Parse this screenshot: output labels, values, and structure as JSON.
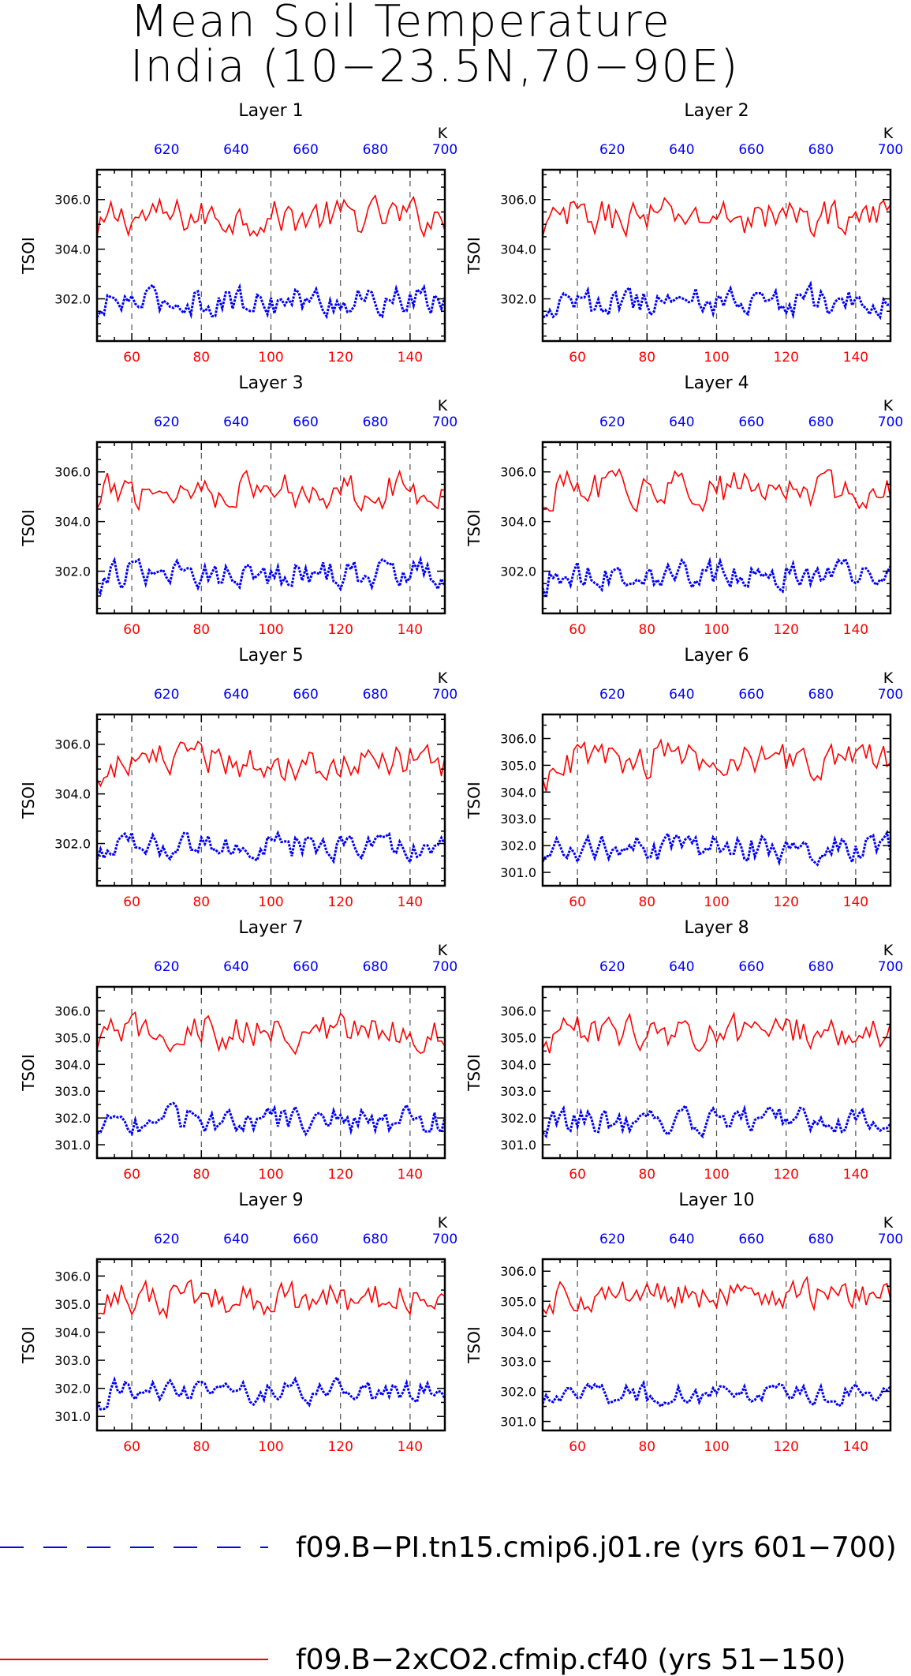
{
  "figure": {
    "title_line1": "Mean Soil Temperature",
    "title_line2": "India (10−23.5N,70−90E)"
  },
  "legend": [
    {
      "label": "f09.B−PI.tn15.cmip6.j01.re (yrs 601−700)",
      "color": "#0000ff",
      "style": "dashed"
    },
    {
      "label": "f09.B−2xCO2.cfmip.cf40 (yrs 51−150)",
      "color": "#ff0000",
      "style": "solid"
    }
  ],
  "colors": {
    "red_series": "#ff0000",
    "blue_series": "#0000ff",
    "axis": "#000000"
  },
  "chart_data": [
    {
      "type": "line",
      "title": "Layer 1",
      "ylabel": "TSOI",
      "ylim": [
        300.3,
        307.2
      ],
      "yticks": [
        302,
        304,
        306
      ],
      "yticklabels": [
        "302.0",
        "304.0",
        "306.0"
      ],
      "x_bottom": {
        "range": [
          50,
          150
        ],
        "ticks": [
          60,
          80,
          100,
          120,
          140
        ],
        "color": "#ff0000"
      },
      "x_top": {
        "range": [
          600,
          700
        ],
        "ticks": [
          620,
          640,
          660,
          680,
          700
        ],
        "unit": "K",
        "color": "#0000ff"
      },
      "vlines": [
        60,
        80,
        100,
        120,
        140
      ],
      "series": [
        {
          "color": "#ff0000",
          "style": "solid",
          "mean": 305.3,
          "amplitude": 0.75
        },
        {
          "color": "#0000ff",
          "style": "dashed",
          "mean": 301.9,
          "amplitude": 0.6
        }
      ]
    },
    {
      "type": "line",
      "title": "Layer 2",
      "ylabel": "TSOI",
      "ylim": [
        300.3,
        307.2
      ],
      "yticks": [
        302,
        304,
        306
      ],
      "yticklabels": [
        "302.0",
        "304.0",
        "306.0"
      ],
      "x_bottom": {
        "range": [
          50,
          150
        ],
        "ticks": [
          60,
          80,
          100,
          120,
          140
        ],
        "color": "#ff0000"
      },
      "x_top": {
        "range": [
          600,
          700
        ],
        "ticks": [
          620,
          640,
          660,
          680,
          700
        ],
        "unit": "K",
        "color": "#0000ff"
      },
      "vlines": [
        60,
        80,
        100,
        120,
        140
      ],
      "series": [
        {
          "color": "#ff0000",
          "style": "solid",
          "mean": 305.3,
          "amplitude": 0.75
        },
        {
          "color": "#0000ff",
          "style": "dashed",
          "mean": 301.9,
          "amplitude": 0.6
        }
      ]
    },
    {
      "type": "line",
      "title": "Layer 3",
      "ylabel": "TSOI",
      "ylim": [
        300.3,
        307.2
      ],
      "yticks": [
        302,
        304,
        306
      ],
      "yticklabels": [
        "302.0",
        "304.0",
        "306.0"
      ],
      "x_bottom": {
        "range": [
          50,
          150
        ],
        "ticks": [
          60,
          80,
          100,
          120,
          140
        ],
        "color": "#ff0000"
      },
      "x_top": {
        "range": [
          600,
          700
        ],
        "ticks": [
          620,
          640,
          660,
          680,
          700
        ],
        "unit": "K",
        "color": "#0000ff"
      },
      "vlines": [
        60,
        80,
        100,
        120,
        140
      ],
      "series": [
        {
          "color": "#ff0000",
          "style": "solid",
          "mean": 305.3,
          "amplitude": 0.75
        },
        {
          "color": "#0000ff",
          "style": "dashed",
          "mean": 301.9,
          "amplitude": 0.58
        }
      ]
    },
    {
      "type": "line",
      "title": "Layer 4",
      "ylabel": "TSOI",
      "ylim": [
        300.3,
        307.2
      ],
      "yticks": [
        302,
        304,
        306
      ],
      "yticklabels": [
        "302.0",
        "304.0",
        "306.0"
      ],
      "x_bottom": {
        "range": [
          50,
          150
        ],
        "ticks": [
          60,
          80,
          100,
          120,
          140
        ],
        "color": "#ff0000"
      },
      "x_top": {
        "range": [
          600,
          700
        ],
        "ticks": [
          620,
          640,
          660,
          680,
          700
        ],
        "unit": "K",
        "color": "#0000ff"
      },
      "vlines": [
        60,
        80,
        100,
        120,
        140
      ],
      "series": [
        {
          "color": "#ff0000",
          "style": "solid",
          "mean": 305.3,
          "amplitude": 0.73
        },
        {
          "color": "#0000ff",
          "style": "dashed",
          "mean": 301.9,
          "amplitude": 0.57
        }
      ]
    },
    {
      "type": "line",
      "title": "Layer 5",
      "ylabel": "TSOI",
      "ylim": [
        300.3,
        307.2
      ],
      "yticks": [
        302,
        304,
        306
      ],
      "yticklabels": [
        "302.0",
        "304.0",
        "306.0"
      ],
      "x_bottom": {
        "range": [
          50,
          150
        ],
        "ticks": [
          60,
          80,
          100,
          120,
          140
        ],
        "color": "#ff0000"
      },
      "x_top": {
        "range": [
          600,
          700
        ],
        "ticks": [
          620,
          640,
          660,
          680,
          700
        ],
        "unit": "K",
        "color": "#0000ff"
      },
      "vlines": [
        60,
        80,
        100,
        120,
        140
      ],
      "series": [
        {
          "color": "#ff0000",
          "style": "solid",
          "mean": 305.3,
          "amplitude": 0.72
        },
        {
          "color": "#0000ff",
          "style": "dashed",
          "mean": 301.9,
          "amplitude": 0.55
        }
      ]
    },
    {
      "type": "line",
      "title": "Layer 6",
      "ylabel": "TSOI",
      "ylim": [
        300.5,
        306.9
      ],
      "yticks": [
        301,
        302,
        303,
        304,
        305,
        306
      ],
      "yticklabels": [
        "301.0",
        "302.0",
        "303.0",
        "304.0",
        "305.0",
        "306.0"
      ],
      "x_bottom": {
        "range": [
          50,
          150
        ],
        "ticks": [
          60,
          80,
          100,
          120,
          140
        ],
        "color": "#ff0000"
      },
      "x_top": {
        "range": [
          600,
          700
        ],
        "ticks": [
          620,
          640,
          660,
          680,
          700
        ],
        "unit": "K",
        "color": "#0000ff"
      },
      "vlines": [
        60,
        80,
        100,
        120,
        140
      ],
      "series": [
        {
          "color": "#ff0000",
          "style": "solid",
          "mean": 305.2,
          "amplitude": 0.7
        },
        {
          "color": "#0000ff",
          "style": "dashed",
          "mean": 301.9,
          "amplitude": 0.52
        }
      ]
    },
    {
      "type": "line",
      "title": "Layer 7",
      "ylabel": "TSOI",
      "ylim": [
        300.5,
        306.9
      ],
      "yticks": [
        301,
        302,
        303,
        304,
        305,
        306
      ],
      "yticklabels": [
        "301.0",
        "302.0",
        "303.0",
        "304.0",
        "305.0",
        "306.0"
      ],
      "x_bottom": {
        "range": [
          50,
          150
        ],
        "ticks": [
          60,
          80,
          100,
          120,
          140
        ],
        "color": "#ff0000"
      },
      "x_top": {
        "range": [
          600,
          700
        ],
        "ticks": [
          620,
          640,
          660,
          680,
          700
        ],
        "unit": "K",
        "color": "#0000ff"
      },
      "vlines": [
        60,
        80,
        100,
        120,
        140
      ],
      "series": [
        {
          "color": "#ff0000",
          "style": "solid",
          "mean": 305.2,
          "amplitude": 0.68
        },
        {
          "color": "#0000ff",
          "style": "dashed",
          "mean": 301.9,
          "amplitude": 0.5
        }
      ]
    },
    {
      "type": "line",
      "title": "Layer 8",
      "ylabel": "TSOI",
      "ylim": [
        300.5,
        306.9
      ],
      "yticks": [
        301,
        302,
        303,
        304,
        305,
        306
      ],
      "yticklabels": [
        "301.0",
        "302.0",
        "303.0",
        "304.0",
        "305.0",
        "306.0"
      ],
      "x_bottom": {
        "range": [
          50,
          150
        ],
        "ticks": [
          60,
          80,
          100,
          120,
          140
        ],
        "color": "#ff0000"
      },
      "x_top": {
        "range": [
          600,
          700
        ],
        "ticks": [
          620,
          640,
          660,
          680,
          700
        ],
        "unit": "K",
        "color": "#0000ff"
      },
      "vlines": [
        60,
        80,
        100,
        120,
        140
      ],
      "series": [
        {
          "color": "#ff0000",
          "style": "solid",
          "mean": 305.2,
          "amplitude": 0.65
        },
        {
          "color": "#0000ff",
          "style": "dashed",
          "mean": 301.9,
          "amplitude": 0.48
        }
      ]
    },
    {
      "type": "line",
      "title": "Layer 9",
      "ylabel": "TSOI",
      "ylim": [
        300.5,
        306.6
      ],
      "yticks": [
        301,
        302,
        303,
        304,
        305,
        306
      ],
      "yticklabels": [
        "301.0",
        "302.0",
        "303.0",
        "304.0",
        "305.0",
        "306.0"
      ],
      "x_bottom": {
        "range": [
          50,
          150
        ],
        "ticks": [
          60,
          80,
          100,
          120,
          140
        ],
        "color": "#ff0000"
      },
      "x_top": {
        "range": [
          600,
          700
        ],
        "ticks": [
          620,
          640,
          660,
          680,
          700
        ],
        "unit": "K",
        "color": "#0000ff"
      },
      "vlines": [
        60,
        80,
        100,
        120,
        140
      ],
      "series": [
        {
          "color": "#ff0000",
          "style": "solid",
          "mean": 305.2,
          "amplitude": 0.6
        },
        {
          "color": "#0000ff",
          "style": "dashed",
          "mean": 301.9,
          "amplitude": 0.42
        }
      ]
    },
    {
      "type": "line",
      "title": "Layer 10",
      "ylabel": "TSOI",
      "ylim": [
        300.7,
        306.4
      ],
      "yticks": [
        301,
        302,
        303,
        304,
        305,
        306
      ],
      "yticklabels": [
        "301.0",
        "302.0",
        "303.0",
        "304.0",
        "305.0",
        "306.0"
      ],
      "x_bottom": {
        "range": [
          50,
          150
        ],
        "ticks": [
          60,
          80,
          100,
          120,
          140
        ],
        "color": "#ff0000"
      },
      "x_top": {
        "range": [
          600,
          700
        ],
        "ticks": [
          620,
          640,
          660,
          680,
          700
        ],
        "unit": "K",
        "color": "#0000ff"
      },
      "vlines": [
        60,
        80,
        100,
        120,
        140
      ],
      "series": [
        {
          "color": "#ff0000",
          "style": "solid",
          "mean": 305.2,
          "amplitude": 0.5
        },
        {
          "color": "#0000ff",
          "style": "dashed",
          "mean": 301.9,
          "amplitude": 0.35
        }
      ]
    }
  ]
}
